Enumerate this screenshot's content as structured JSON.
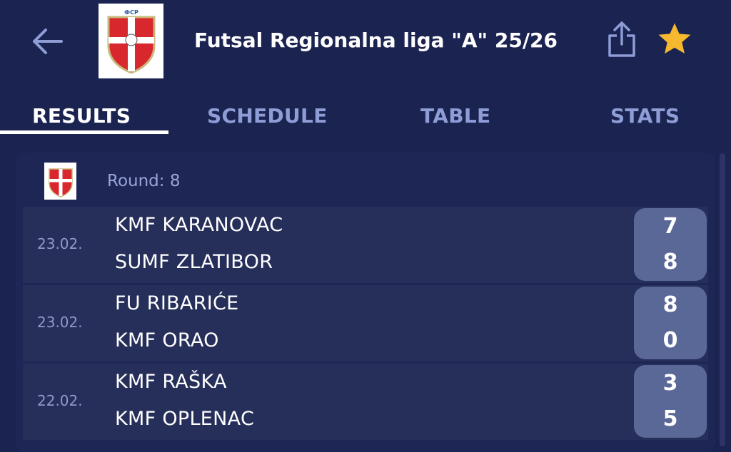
{
  "header": {
    "title": "Futsal Regionalna liga \"A\" 25/26",
    "back_icon": "arrow-left-icon",
    "share_icon": "share-icon",
    "favorite_icon": "star-icon",
    "favorite_color": "#f5b82e"
  },
  "tabs": [
    {
      "label": "RESULTS",
      "active": true
    },
    {
      "label": "SCHEDULE"
    },
    {
      "label": "TABLE"
    },
    {
      "label": "STATS"
    }
  ],
  "round": {
    "label": "Round: 8"
  },
  "matches": [
    {
      "date": "23.02.",
      "home": "KMF KARANOVAC",
      "away": "SUMF ZLATIBOR",
      "home_score": "7",
      "away_score": "8"
    },
    {
      "date": "23.02.",
      "home": "FU RIBARIĆE",
      "away": "KMF ORAO",
      "home_score": "8",
      "away_score": "0"
    },
    {
      "date": "22.02.",
      "home": "KMF RAŠKA",
      "away": "KMF OPLENAC",
      "home_score": "3",
      "away_score": "5"
    }
  ]
}
